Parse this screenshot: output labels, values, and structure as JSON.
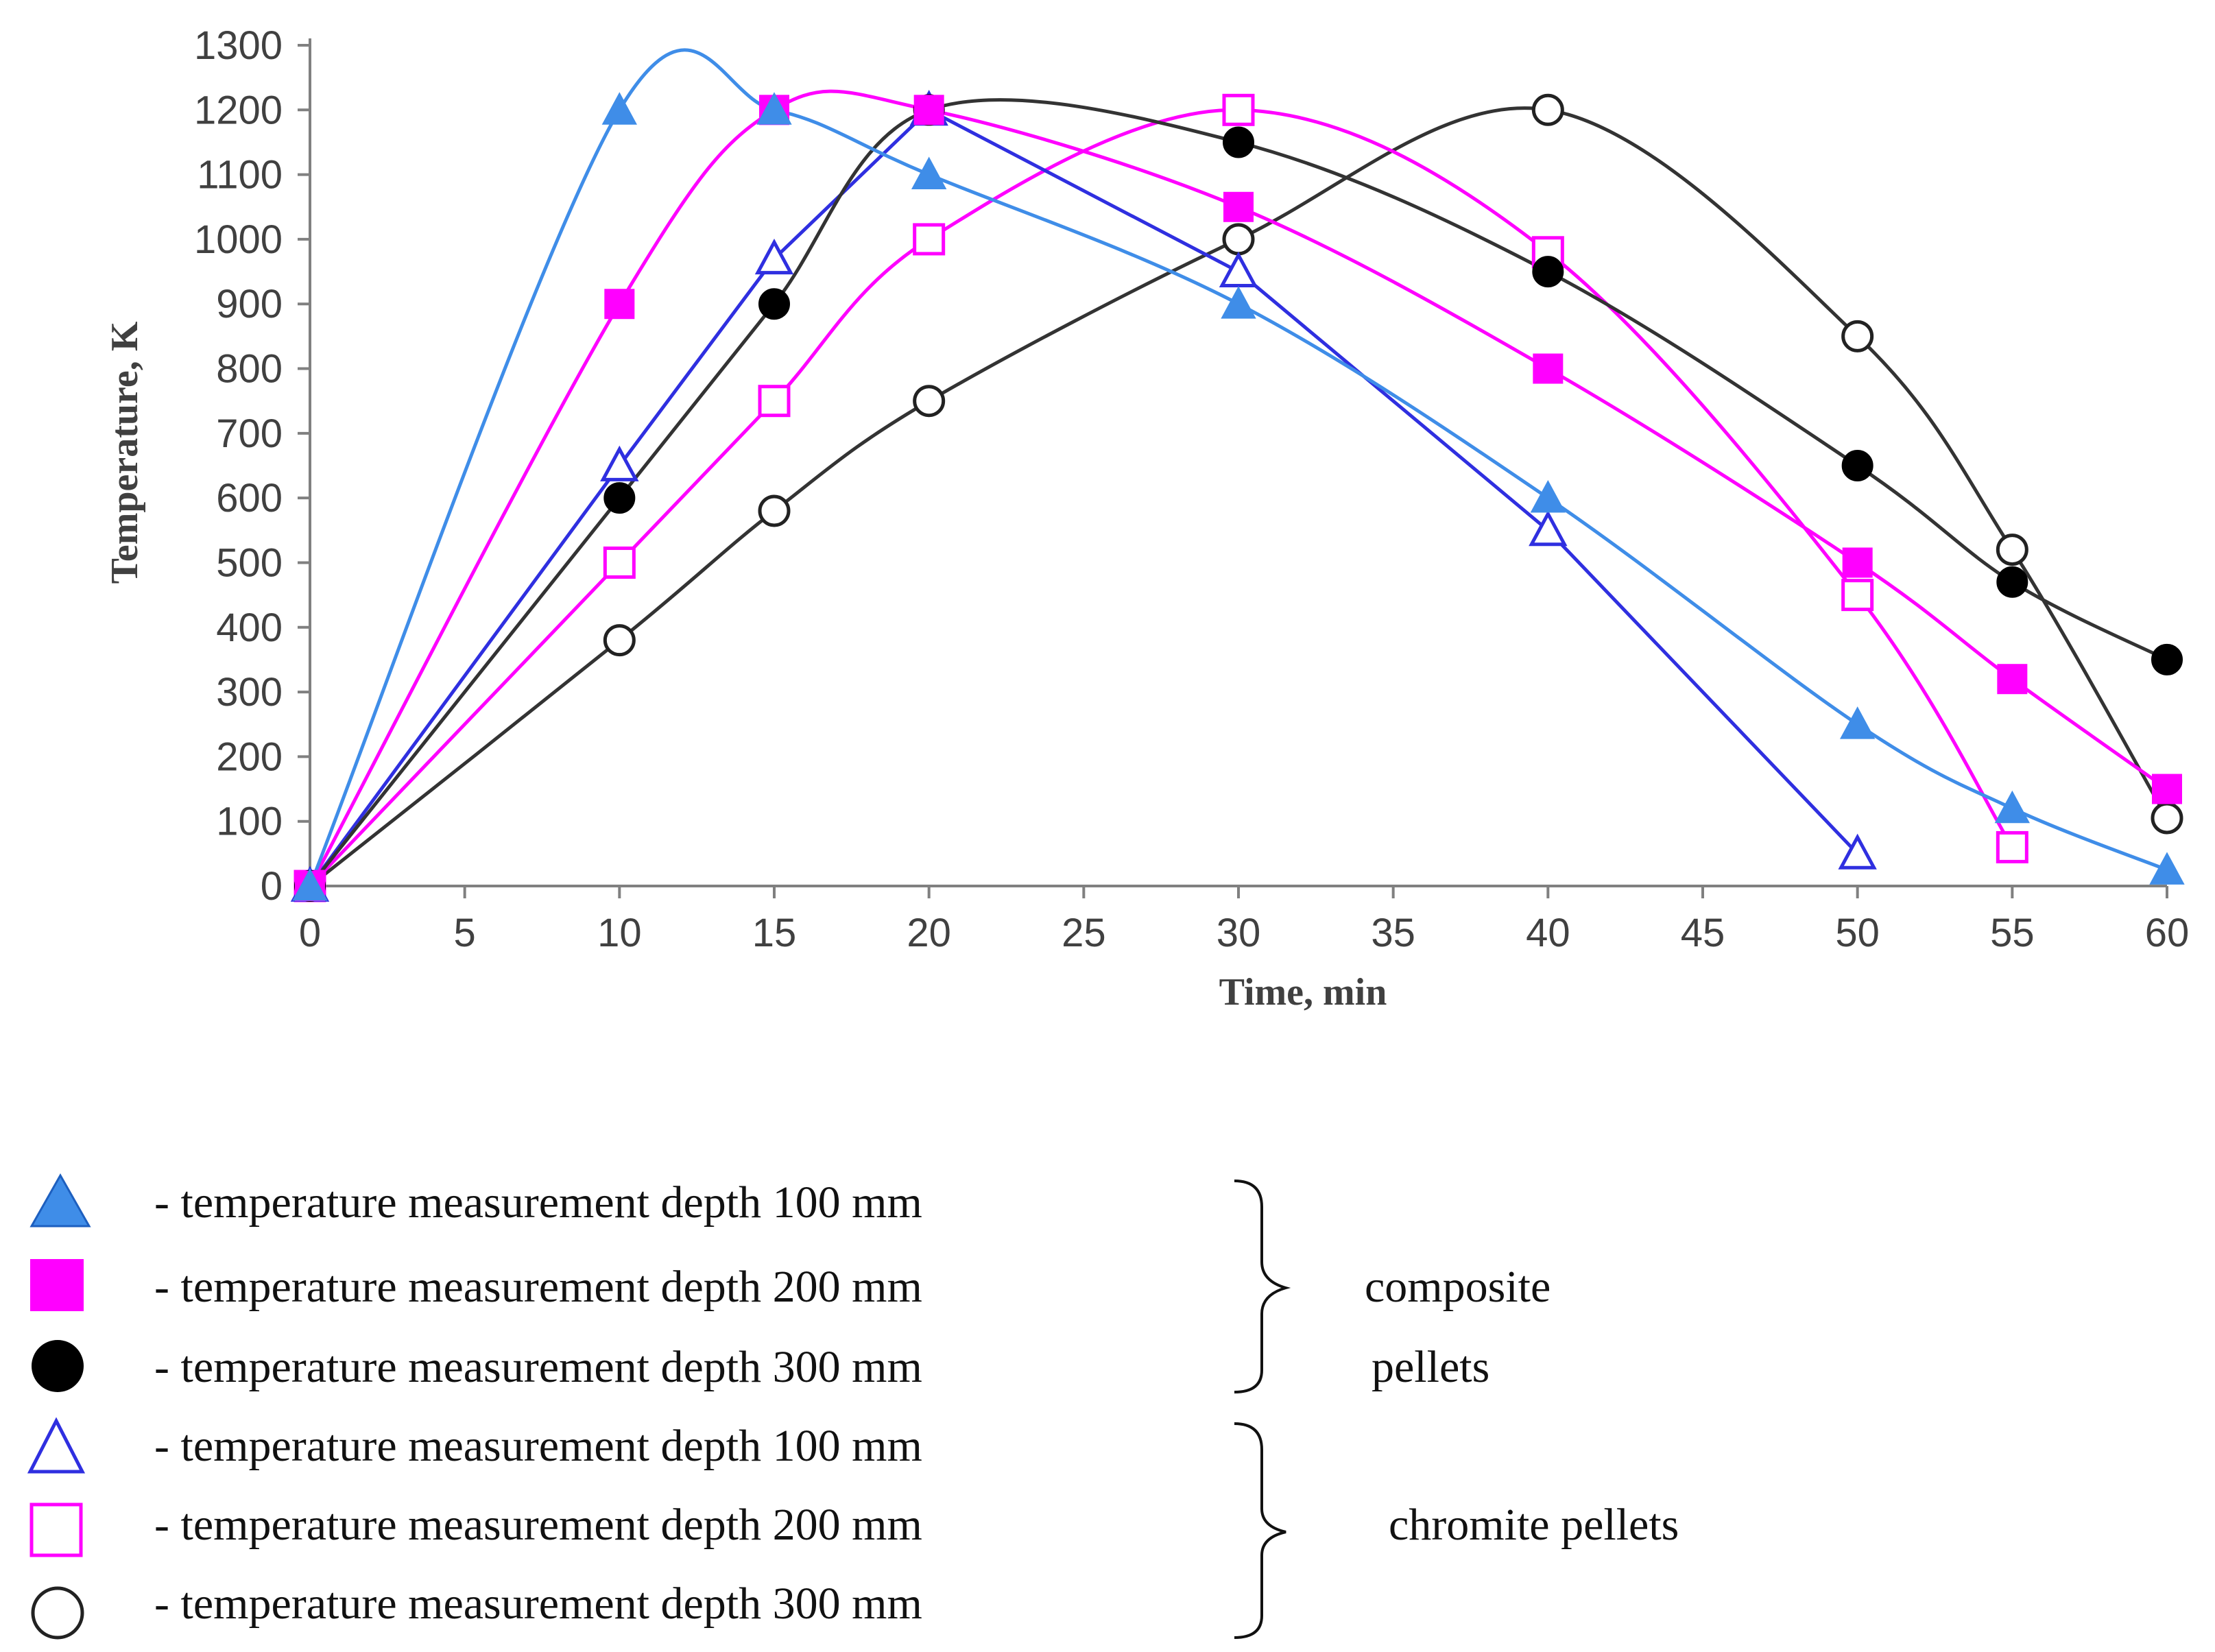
{
  "chart_data": {
    "type": "line",
    "title": "",
    "xlabel": "Time, min",
    "ylabel": "Temperature, K",
    "xlim": [
      0,
      60
    ],
    "ylim": [
      0,
      1300
    ],
    "xticks": [
      0,
      5,
      10,
      15,
      20,
      25,
      30,
      35,
      40,
      45,
      50,
      55,
      60
    ],
    "yticks": [
      0,
      100,
      200,
      300,
      400,
      500,
      600,
      700,
      800,
      900,
      1000,
      1100,
      1200,
      1300
    ],
    "series": [
      {
        "name": "composite pellets - temperature measurement depth 100 mm",
        "marker": "triangle",
        "filled": true,
        "color": "#3f8de8",
        "smooth": true,
        "x": [
          0,
          10,
          15,
          20,
          30,
          40,
          50,
          55,
          60
        ],
        "y": [
          0,
          1200,
          1200,
          1100,
          900,
          600,
          250,
          120,
          25
        ]
      },
      {
        "name": "composite pellets - temperature measurement depth 200 mm",
        "marker": "square",
        "filled": true,
        "color": "#ff00ff",
        "smooth": true,
        "x": [
          0,
          10,
          15,
          20,
          30,
          40,
          50,
          55,
          60
        ],
        "y": [
          0,
          900,
          1200,
          1200,
          1050,
          800,
          500,
          320,
          150
        ]
      },
      {
        "name": "composite pellets - temperature measurement depth 300 mm",
        "marker": "circle",
        "filled": true,
        "color": "#000000",
        "line_color": "#333333",
        "smooth": true,
        "x": [
          0,
          10,
          15,
          20,
          30,
          40,
          50,
          55,
          60
        ],
        "y": [
          0,
          600,
          900,
          1200,
          1150,
          950,
          650,
          470,
          350
        ]
      },
      {
        "name": "chromite pellets - temperature measurement depth 100 mm",
        "marker": "triangle",
        "filled": false,
        "color": "#2f2fe0",
        "smooth": false,
        "x": [
          0,
          10,
          15,
          20,
          30,
          40,
          50
        ],
        "y": [
          0,
          650,
          970,
          1200,
          950,
          550,
          50
        ]
      },
      {
        "name": "chromite pellets - temperature measurement depth 200 mm",
        "marker": "square",
        "filled": false,
        "color": "#ff00ff",
        "smooth": true,
        "x": [
          0,
          10,
          15,
          20,
          30,
          40,
          50,
          55
        ],
        "y": [
          0,
          500,
          750,
          1000,
          1200,
          980,
          450,
          60
        ]
      },
      {
        "name": "chromite pellets - temperature measurement depth 300 mm",
        "marker": "circle",
        "filled": false,
        "color": "#222222",
        "line_color": "#333333",
        "smooth": true,
        "x": [
          0,
          10,
          15,
          20,
          30,
          40,
          50,
          55,
          60
        ],
        "y": [
          0,
          380,
          580,
          750,
          1000,
          1200,
          850,
          520,
          105
        ]
      }
    ]
  },
  "legend": {
    "entries": [
      {
        "label": "- temperature measurement depth 100 mm"
      },
      {
        "label": "- temperature measurement depth 200 mm"
      },
      {
        "label": "- temperature measurement depth 300 mm"
      },
      {
        "label": "- temperature measurement depth 100 mm"
      },
      {
        "label": "- temperature measurement depth 200 mm"
      },
      {
        "label": "- temperature measurement depth 300 mm"
      }
    ],
    "groups": {
      "composite_line1": "composite",
      "composite_line2": "pellets",
      "chromite": "chromite pellets"
    }
  }
}
